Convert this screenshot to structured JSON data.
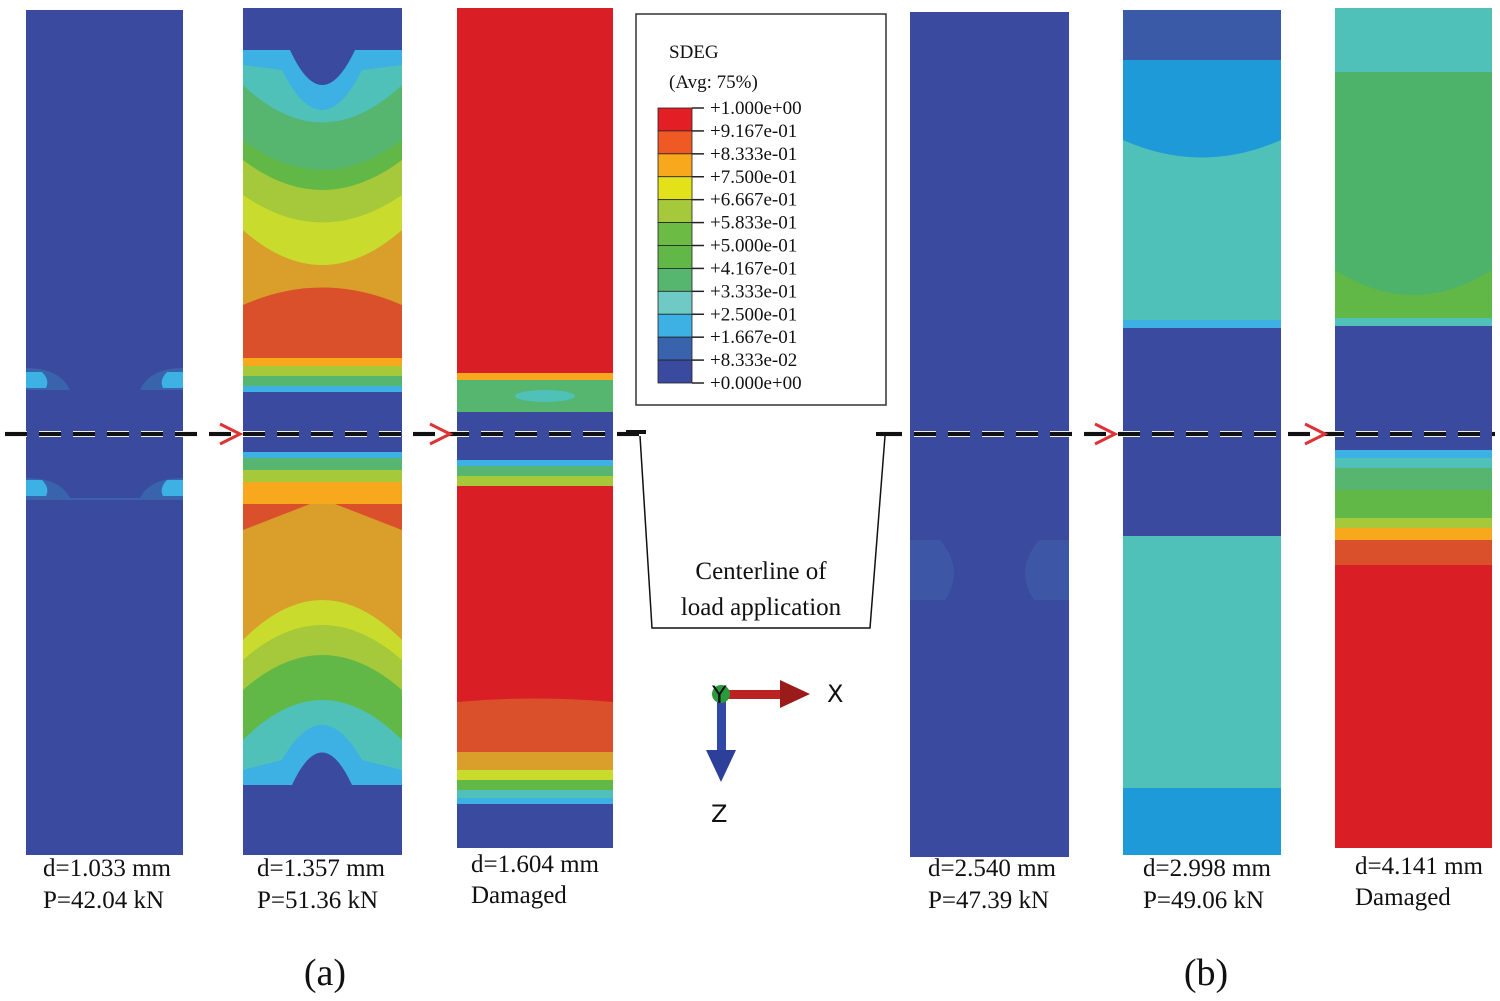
{
  "legend": {
    "title": "SDEG",
    "subtitle": "(Avg: 75%)",
    "values": [
      "+1.000e+00",
      "+9.167e-01",
      "+8.333e-01",
      "+7.500e-01",
      "+6.667e-01",
      "+5.833e-01",
      "+5.000e-01",
      "+4.167e-01",
      "+3.333e-01",
      "+2.500e-01",
      "+1.667e-01",
      "+8.333e-02",
      "+0.000e+00"
    ],
    "colors": [
      "#e31e24",
      "#ef5a24",
      "#f7a81c",
      "#e3e21a",
      "#a5c93a",
      "#6bbb44",
      "#62b846",
      "#56b56e",
      "#6fcac6",
      "#3db0e4",
      "#3a63ad",
      "#3a4a9e"
    ]
  },
  "callout": {
    "line1": "Centerline of",
    "line2": "load application"
  },
  "axes": {
    "x": "X",
    "y": "Y",
    "z": "Z"
  },
  "panels": [
    {
      "d": "d=1.033 mm",
      "p": "P=42.04 kN"
    },
    {
      "d": "d=1.357 mm",
      "p": "P=51.36 kN"
    },
    {
      "d": "d=1.604 mm",
      "p": "Damaged"
    },
    {
      "d": "d=2.540 mm",
      "p": "P=47.39 kN"
    },
    {
      "d": "d=2.998 mm",
      "p": "P=49.06 kN"
    },
    {
      "d": "d=4.141 mm",
      "p": "Damaged"
    }
  ],
  "captions": {
    "a": "(a)",
    "b": "(b)"
  }
}
